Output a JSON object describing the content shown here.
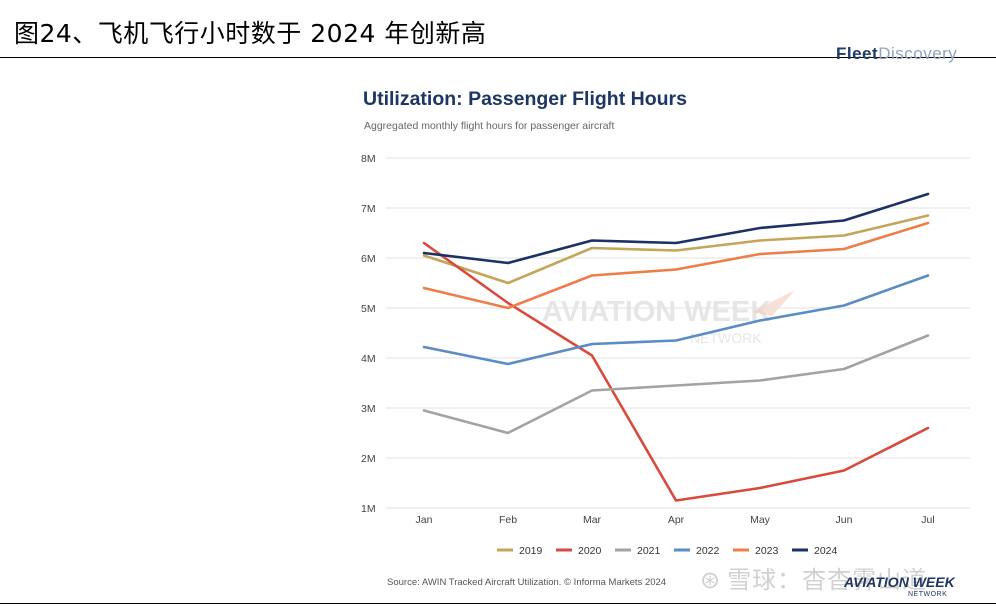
{
  "figure_title": "图24、飞机飞行小时数于 2024 年创新高",
  "top_right_logo": {
    "bold": "Fleet",
    "light": "Discovery"
  },
  "source_note": "Source: AWIN Tracked Aircraft Utilization. © Informa Markets 2024",
  "brand_logo": {
    "name": "AVIATION WEEK",
    "sub": "NETWORK"
  },
  "watermark": {
    "text": "AVIATION WEEK",
    "sub": "NETWORK",
    "platform": "雪球：杳杳霁山道",
    "platform_icon": "xueqiu-icon"
  },
  "chart_data": {
    "type": "line",
    "title": "Utilization: Passenger Flight Hours",
    "subtitle": "Aggregated monthly flight hours for passenger aircraft",
    "xlabel": "",
    "ylabel": "",
    "categories": [
      "Jan",
      "Feb",
      "Mar",
      "Apr",
      "May",
      "Jun",
      "Jul"
    ],
    "y_ticks": [
      1,
      2,
      3,
      4,
      5,
      6,
      7,
      8
    ],
    "y_tick_labels": [
      "1M",
      "2M",
      "3M",
      "4M",
      "5M",
      "6M",
      "7M",
      "8M"
    ],
    "ylim": [
      1,
      8
    ],
    "grid": true,
    "legend_position": "bottom",
    "series": [
      {
        "name": "2019",
        "color": "#c4a55a",
        "values": [
          6.05,
          5.5,
          6.2,
          6.15,
          6.35,
          6.45,
          6.85
        ]
      },
      {
        "name": "2020",
        "color": "#d94a3d",
        "values": [
          6.3,
          5.1,
          4.05,
          1.15,
          1.4,
          1.75,
          2.6
        ]
      },
      {
        "name": "2021",
        "color": "#a3a3a3",
        "values": [
          2.95,
          2.5,
          3.35,
          3.45,
          3.55,
          3.78,
          4.45
        ]
      },
      {
        "name": "2022",
        "color": "#5b8cc4",
        "values": [
          4.22,
          3.88,
          4.28,
          4.35,
          4.75,
          5.05,
          5.65
        ]
      },
      {
        "name": "2023",
        "color": "#ef7d4a",
        "values": [
          5.4,
          5.0,
          5.65,
          5.77,
          6.08,
          6.18,
          6.7
        ]
      },
      {
        "name": "2024",
        "color": "#1d3167",
        "values": [
          6.1,
          5.9,
          6.35,
          6.3,
          6.6,
          6.75,
          7.28
        ]
      }
    ]
  }
}
